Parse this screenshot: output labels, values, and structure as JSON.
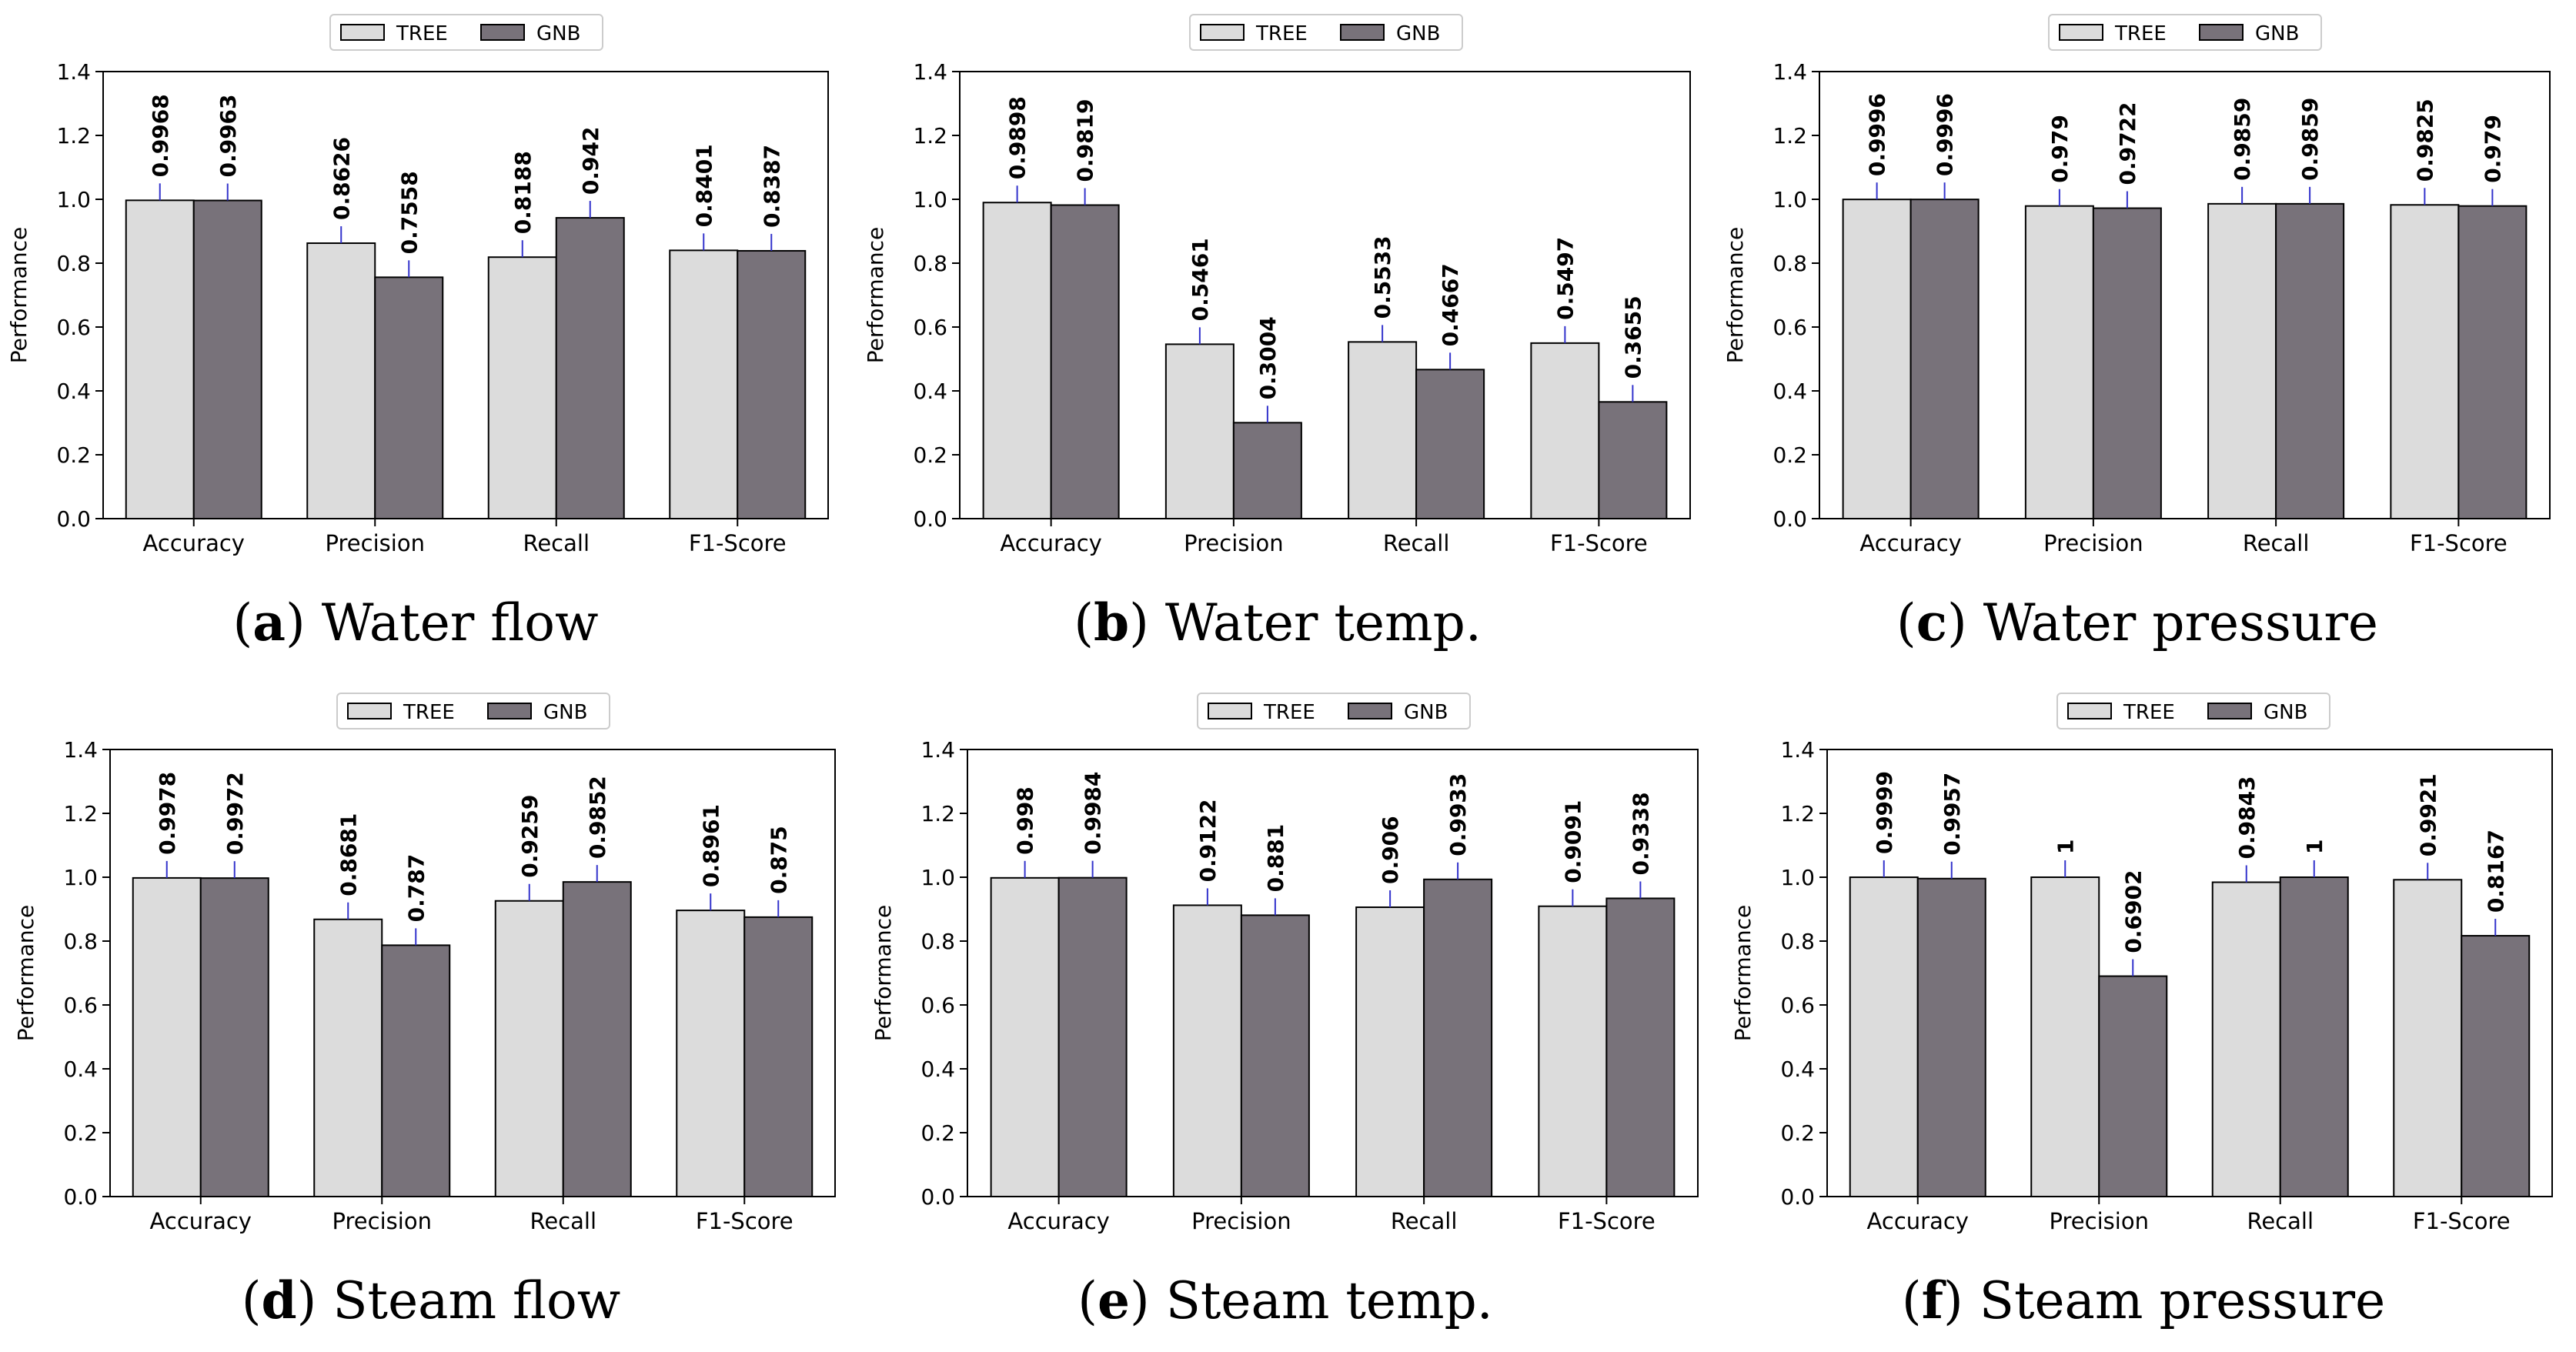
{
  "chart_data": [
    {
      "type": "bar",
      "panel": "a",
      "caption": "Water flow",
      "categories": [
        "Accuracy",
        "Precision",
        "Recall",
        "F1-Score"
      ],
      "series": [
        {
          "name": "TREE",
          "values": [
            0.9968,
            0.8626,
            0.8188,
            0.8401
          ],
          "labels": [
            "0.9968",
            "0.8626",
            "0.8188",
            "0.8401"
          ]
        },
        {
          "name": "GNB",
          "values": [
            0.9963,
            0.7558,
            0.942,
            0.8387
          ],
          "labels": [
            "0.9963",
            "0.7558",
            "0.942",
            "0.8387"
          ]
        }
      ],
      "ylabel": "Performance",
      "ylim": [
        0,
        1.4
      ],
      "yticks": [
        "0.0",
        "0.2",
        "0.4",
        "0.6",
        "0.8",
        "1.0",
        "1.2",
        "1.4"
      ],
      "legend_position": "top-center"
    },
    {
      "type": "bar",
      "panel": "b",
      "caption": "Water temp.",
      "categories": [
        "Accuracy",
        "Precision",
        "Recall",
        "F1-Score"
      ],
      "series": [
        {
          "name": "TREE",
          "values": [
            0.9898,
            0.5461,
            0.5533,
            0.5497
          ],
          "labels": [
            "0.9898",
            "0.5461",
            "0.5533",
            "0.5497"
          ]
        },
        {
          "name": "GNB",
          "values": [
            0.9819,
            0.3004,
            0.4667,
            0.3655
          ],
          "labels": [
            "0.9819",
            "0.3004",
            "0.4667",
            "0.3655"
          ]
        }
      ],
      "ylabel": "Performance",
      "ylim": [
        0,
        1.4
      ],
      "yticks": [
        "0.0",
        "0.2",
        "0.4",
        "0.6",
        "0.8",
        "1.0",
        "1.2",
        "1.4"
      ],
      "legend_position": "top-center"
    },
    {
      "type": "bar",
      "panel": "c",
      "caption": "Water pressure",
      "categories": [
        "Accuracy",
        "Precision",
        "Recall",
        "F1-Score"
      ],
      "series": [
        {
          "name": "TREE",
          "values": [
            0.9996,
            0.979,
            0.9859,
            0.9825
          ],
          "labels": [
            "0.9996",
            "0.979",
            "0.9859",
            "0.9825"
          ]
        },
        {
          "name": "GNB",
          "values": [
            0.9996,
            0.9722,
            0.9859,
            0.979
          ],
          "labels": [
            "0.9996",
            "0.9722",
            "0.9859",
            "0.979"
          ]
        }
      ],
      "ylabel": "Performance",
      "ylim": [
        0,
        1.4
      ],
      "yticks": [
        "0.0",
        "0.2",
        "0.4",
        "0.6",
        "0.8",
        "1.0",
        "1.2",
        "1.4"
      ],
      "legend_position": "top-center"
    },
    {
      "type": "bar",
      "panel": "d",
      "caption": "Steam flow",
      "categories": [
        "Accuracy",
        "Precision",
        "Recall",
        "F1-Score"
      ],
      "series": [
        {
          "name": "TREE",
          "values": [
            0.9978,
            0.8681,
            0.9259,
            0.8961
          ],
          "labels": [
            "0.9978",
            "0.8681",
            "0.9259",
            "0.8961"
          ]
        },
        {
          "name": "GNB",
          "values": [
            0.9972,
            0.787,
            0.9852,
            0.875
          ],
          "labels": [
            "0.9972",
            "0.787",
            "0.9852",
            "0.875"
          ]
        }
      ],
      "ylabel": "Performance",
      "ylim": [
        0,
        1.4
      ],
      "yticks": [
        "0.0",
        "0.2",
        "0.4",
        "0.6",
        "0.8",
        "1.0",
        "1.2",
        "1.4"
      ],
      "legend_position": "top-center"
    },
    {
      "type": "bar",
      "panel": "e",
      "caption": "Steam temp.",
      "categories": [
        "Accuracy",
        "Precision",
        "Recall",
        "F1-Score"
      ],
      "series": [
        {
          "name": "TREE",
          "values": [
            0.998,
            0.9122,
            0.906,
            0.9091
          ],
          "labels": [
            "0.998",
            "0.9122",
            "0.906",
            "0.9091"
          ]
        },
        {
          "name": "GNB",
          "values": [
            0.9984,
            0.881,
            0.9933,
            0.9338
          ],
          "labels": [
            "0.9984",
            "0.881",
            "0.9933",
            "0.9338"
          ]
        }
      ],
      "ylabel": "Performance",
      "ylim": [
        0,
        1.4
      ],
      "yticks": [
        "0.0",
        "0.2",
        "0.4",
        "0.6",
        "0.8",
        "1.0",
        "1.2",
        "1.4"
      ],
      "legend_position": "top-center"
    },
    {
      "type": "bar",
      "panel": "f",
      "caption": "Steam pressure",
      "categories": [
        "Accuracy",
        "Precision",
        "Recall",
        "F1-Score"
      ],
      "series": [
        {
          "name": "TREE",
          "values": [
            0.9999,
            1,
            0.9843,
            0.9921
          ],
          "labels": [
            "0.9999",
            "1",
            "0.9843",
            "0.9921"
          ]
        },
        {
          "name": "GNB",
          "values": [
            0.9957,
            0.6902,
            1,
            0.8167
          ],
          "labels": [
            "0.9957",
            "0.6902",
            "1",
            "0.8167"
          ]
        }
      ],
      "ylabel": "Performance",
      "ylim": [
        0,
        1.4
      ],
      "yticks": [
        "0.0",
        "0.2",
        "0.4",
        "0.6",
        "0.8",
        "1.0",
        "1.2",
        "1.4"
      ],
      "legend_position": "top-center"
    }
  ],
  "colors": {
    "TREE": "#dcdcdc",
    "GNB": "#78727a",
    "error_line": "#3333cc",
    "bar_edge": "#000000"
  }
}
